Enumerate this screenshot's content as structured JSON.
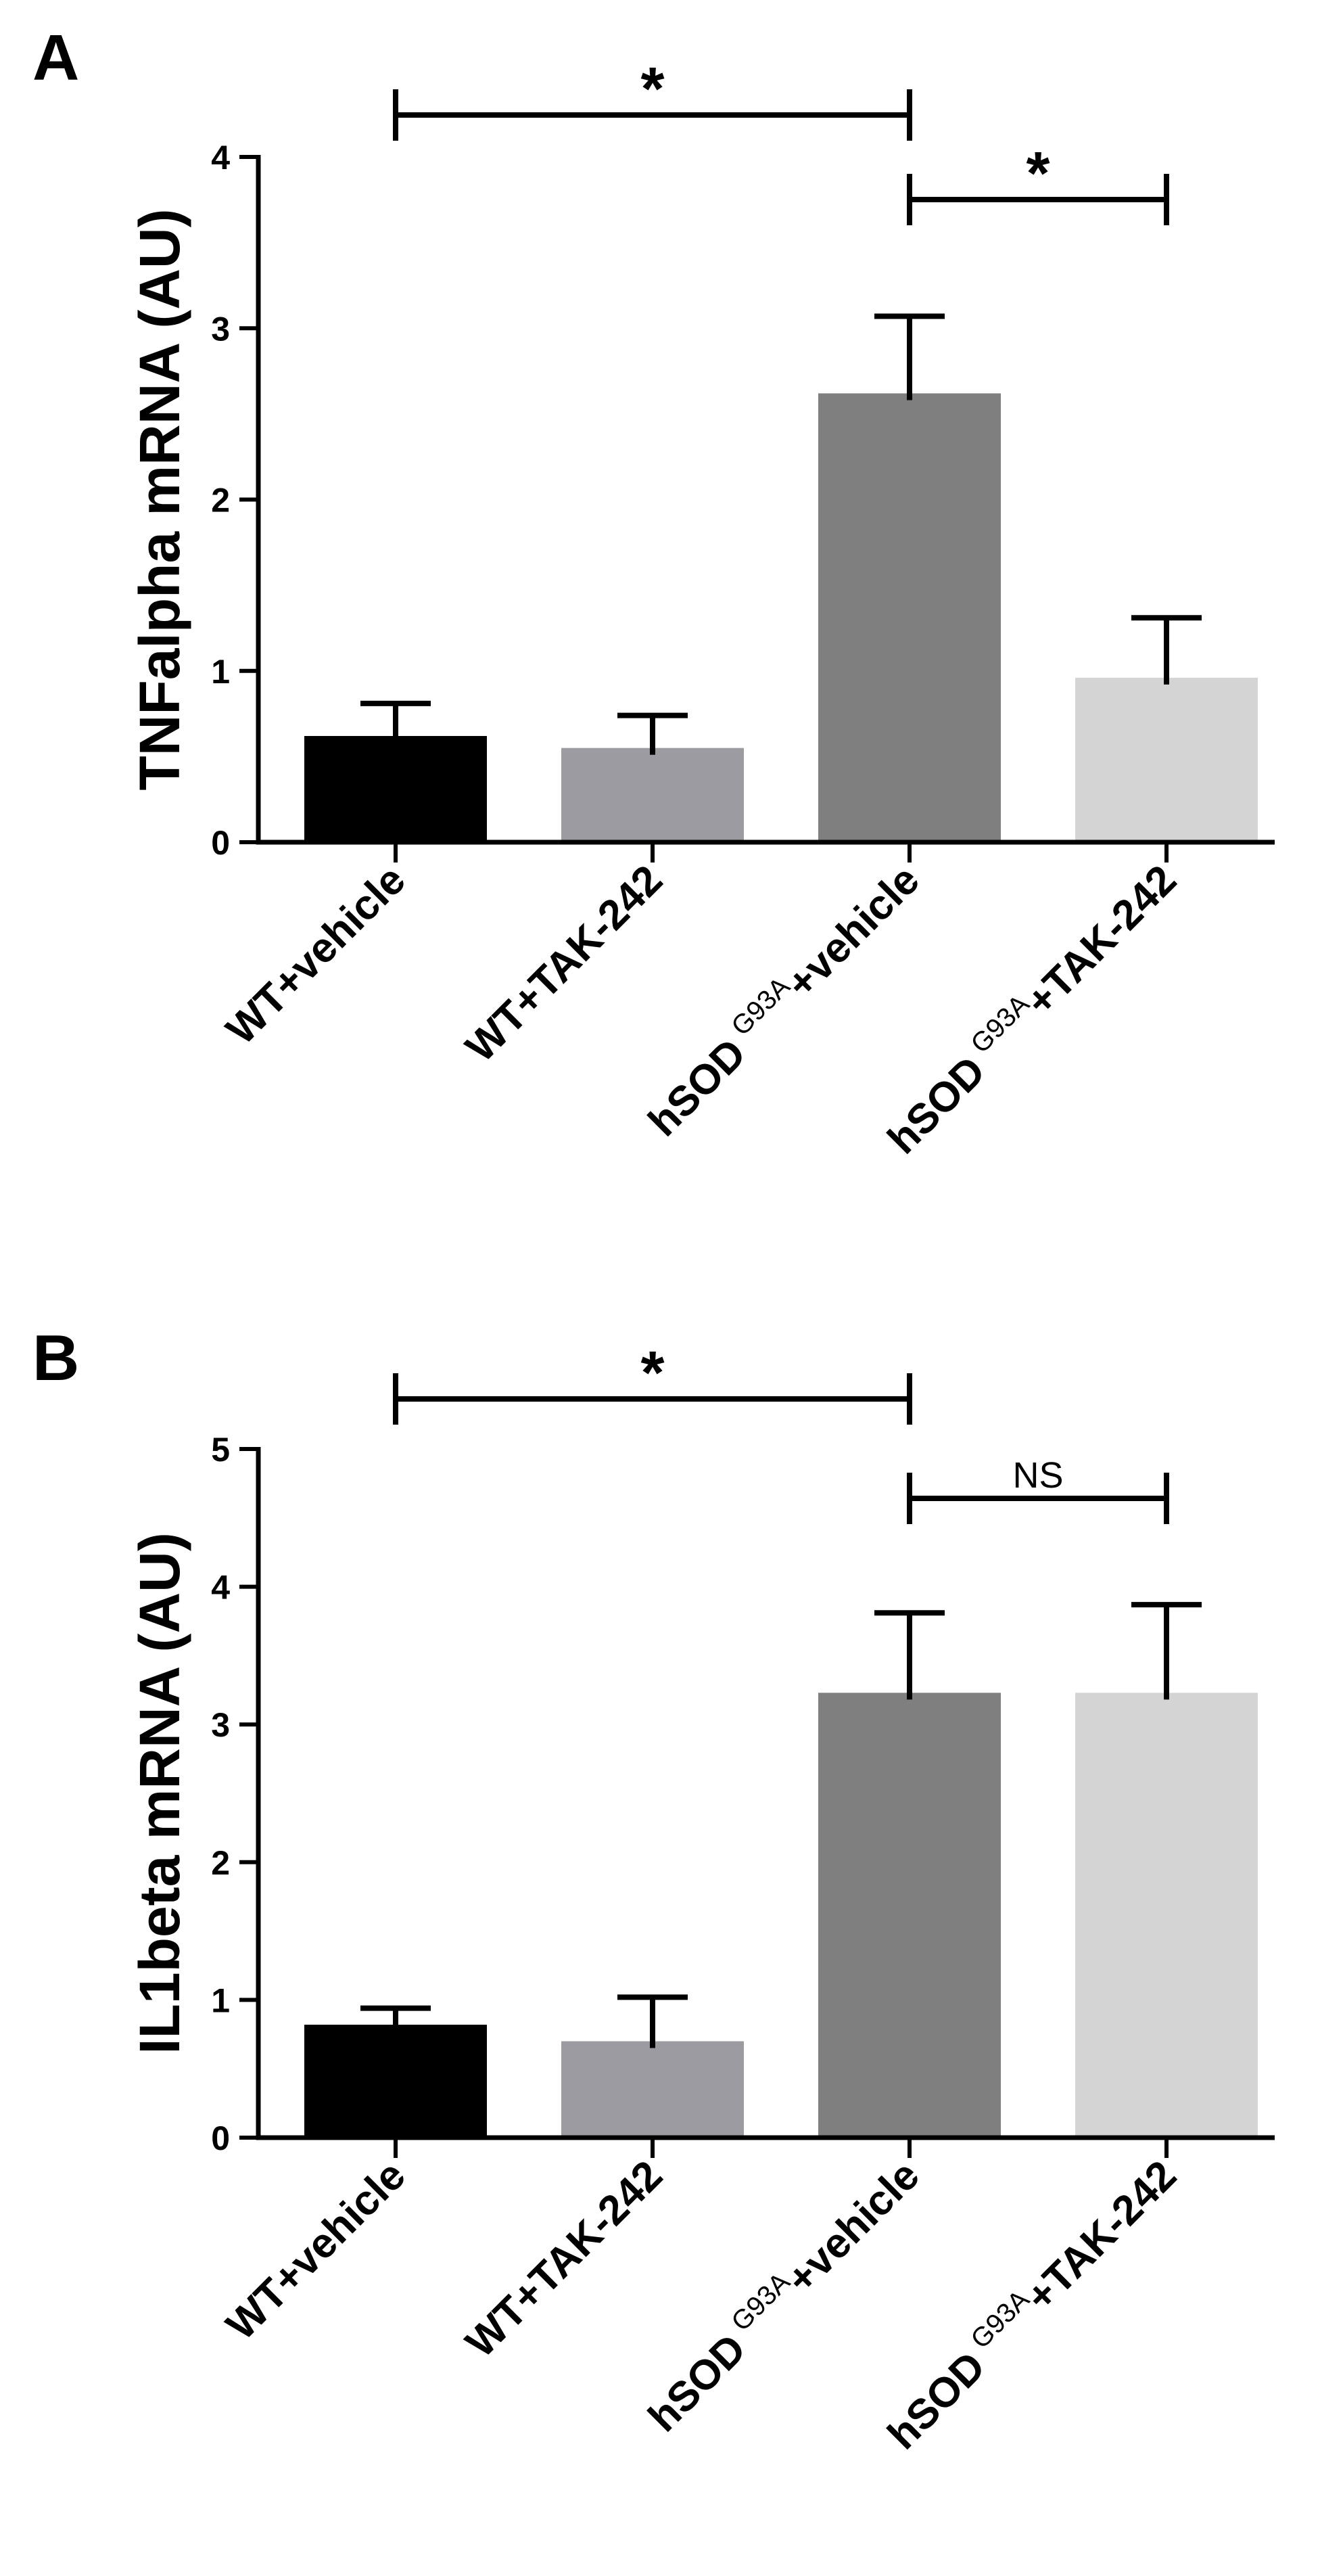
{
  "chart_data": [
    {
      "type": "bar",
      "panel": "A",
      "ylabel": "TNFalpha mRNA (AU)",
      "ylim": [
        0,
        4
      ],
      "yticks": [
        0,
        1,
        2,
        3,
        4
      ],
      "categories": [
        {
          "base": "WT+vehicle",
          "sup": "",
          "suffix": ""
        },
        {
          "base": "WT+TAK-242",
          "sup": "",
          "suffix": ""
        },
        {
          "base": "hSOD",
          "sup": "G93A",
          "suffix": "+vehicle"
        },
        {
          "base": "hSOD",
          "sup": "G93A",
          "suffix": "+TAK-242"
        }
      ],
      "values": [
        0.62,
        0.55,
        2.62,
        0.96
      ],
      "errors": [
        0.19,
        0.19,
        0.45,
        0.35
      ],
      "colors": [
        "#000000",
        "#9d9ba2",
        "#7f7f7f",
        "#d4d4d4"
      ],
      "significance": [
        {
          "from": 0,
          "to": 2,
          "label": "*"
        },
        {
          "from": 2,
          "to": 3,
          "label": "*"
        }
      ]
    },
    {
      "type": "bar",
      "panel": "B",
      "ylabel": "IL1beta mRNA (AU)",
      "ylim": [
        0,
        5
      ],
      "yticks": [
        0,
        1,
        2,
        3,
        4,
        5
      ],
      "categories": [
        {
          "base": "WT+vehicle",
          "sup": "",
          "suffix": ""
        },
        {
          "base": "WT+TAK-242",
          "sup": "",
          "suffix": ""
        },
        {
          "base": "hSOD",
          "sup": "G93A",
          "suffix": "+vehicle"
        },
        {
          "base": "hSOD",
          "sup": "G93A",
          "suffix": "+TAK-242"
        }
      ],
      "values": [
        0.82,
        0.7,
        3.23,
        3.23
      ],
      "errors": [
        0.12,
        0.32,
        0.58,
        0.64
      ],
      "colors": [
        "#000000",
        "#9d9ba2",
        "#7f7f7f",
        "#d4d4d4"
      ],
      "significance": [
        {
          "from": 0,
          "to": 2,
          "label": "*"
        },
        {
          "from": 2,
          "to": 3,
          "label": "NS"
        }
      ]
    }
  ]
}
